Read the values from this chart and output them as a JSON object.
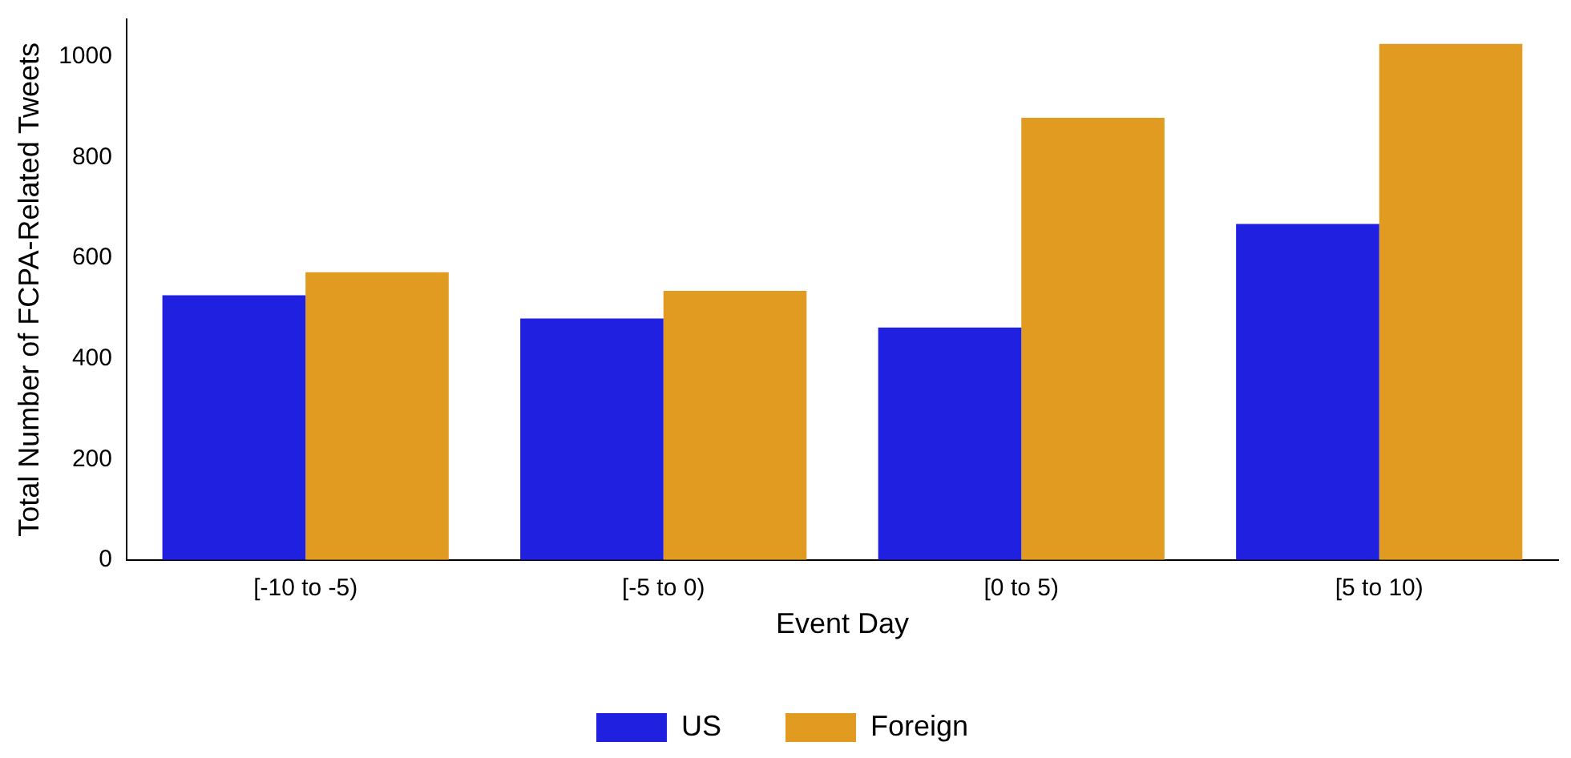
{
  "chart_data": {
    "type": "bar",
    "xlabel": "Event Day",
    "ylabel": "Total Number of FCPA-Related Tweets",
    "categories": [
      "[-10 to -5)",
      "[-5 to 0)",
      "[0 to 5)",
      "[5 to 10)"
    ],
    "series": [
      {
        "name": "US",
        "color": "#2020e0",
        "values": [
          526,
          480,
          462,
          668
        ]
      },
      {
        "name": "Foreign",
        "color": "#e09b20",
        "values": [
          572,
          535,
          879,
          1026
        ]
      }
    ],
    "ylim": [
      0,
      1075
    ],
    "yticks": [
      0,
      200,
      400,
      600,
      800,
      1000
    ],
    "grid": false,
    "legend": "bottom"
  }
}
